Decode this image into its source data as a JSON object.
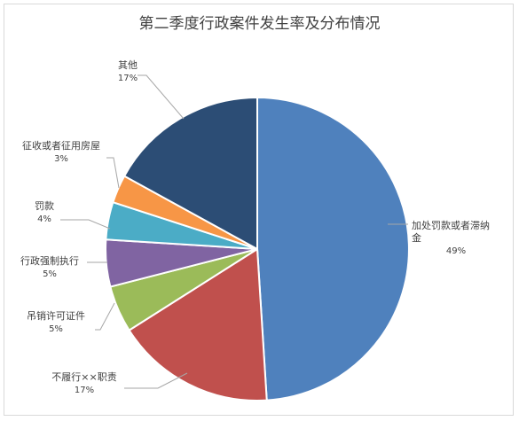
{
  "chart_data": {
    "type": "pie",
    "title": "第二季度行政案件发生率及分布情况",
    "start_angle": "12 o'clock, clockwise",
    "slices": [
      {
        "label_lines": [
          "加处罚款或者滞纳",
          "金"
        ],
        "percent_text": "49%",
        "value": 49,
        "color": "#4f81bd"
      },
      {
        "label_lines": [
          "不履行××职责"
        ],
        "percent_text": "17%",
        "value": 17,
        "color": "#c0504d"
      },
      {
        "label_lines": [
          "吊销许可证件"
        ],
        "percent_text": "5%",
        "value": 5,
        "color": "#9bbb59"
      },
      {
        "label_lines": [
          "行政强制执行"
        ],
        "percent_text": "5%",
        "value": 5,
        "color": "#8064a2"
      },
      {
        "label_lines": [
          "罚款"
        ],
        "percent_text": "4%",
        "value": 4,
        "color": "#4bacc6"
      },
      {
        "label_lines": [
          "征收或者征用房屋"
        ],
        "percent_text": "3%",
        "value": 3,
        "color": "#f79646"
      },
      {
        "label_lines": [
          "其他"
        ],
        "percent_text": "17%",
        "value": 17,
        "color": "#2c4d75"
      }
    ],
    "legend": "none",
    "data_labels": "outside with leader lines"
  }
}
